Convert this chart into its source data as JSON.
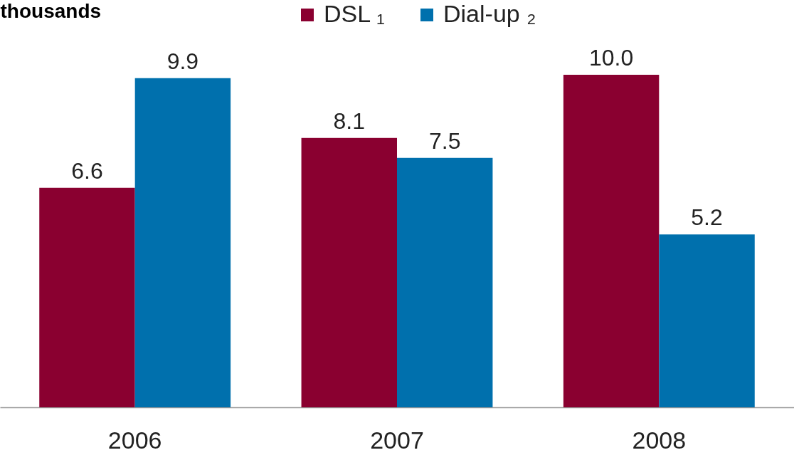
{
  "chart_data": {
    "type": "bar",
    "ylabel": "thousands",
    "categories": [
      "2006",
      "2007",
      "2008"
    ],
    "series": [
      {
        "name": "DSL ₁",
        "color": "#8a0030",
        "values": [
          6.6,
          8.1,
          10.0
        ],
        "value_labels": [
          "6.6",
          "8.1",
          "10.0"
        ]
      },
      {
        "name": "Dial-up ₂",
        "color": "#0070ad",
        "values": [
          9.9,
          7.5,
          5.2
        ],
        "value_labels": [
          "9.9",
          "7.5",
          "5.2"
        ]
      }
    ],
    "legend": "top",
    "tick_labels": "x"
  }
}
